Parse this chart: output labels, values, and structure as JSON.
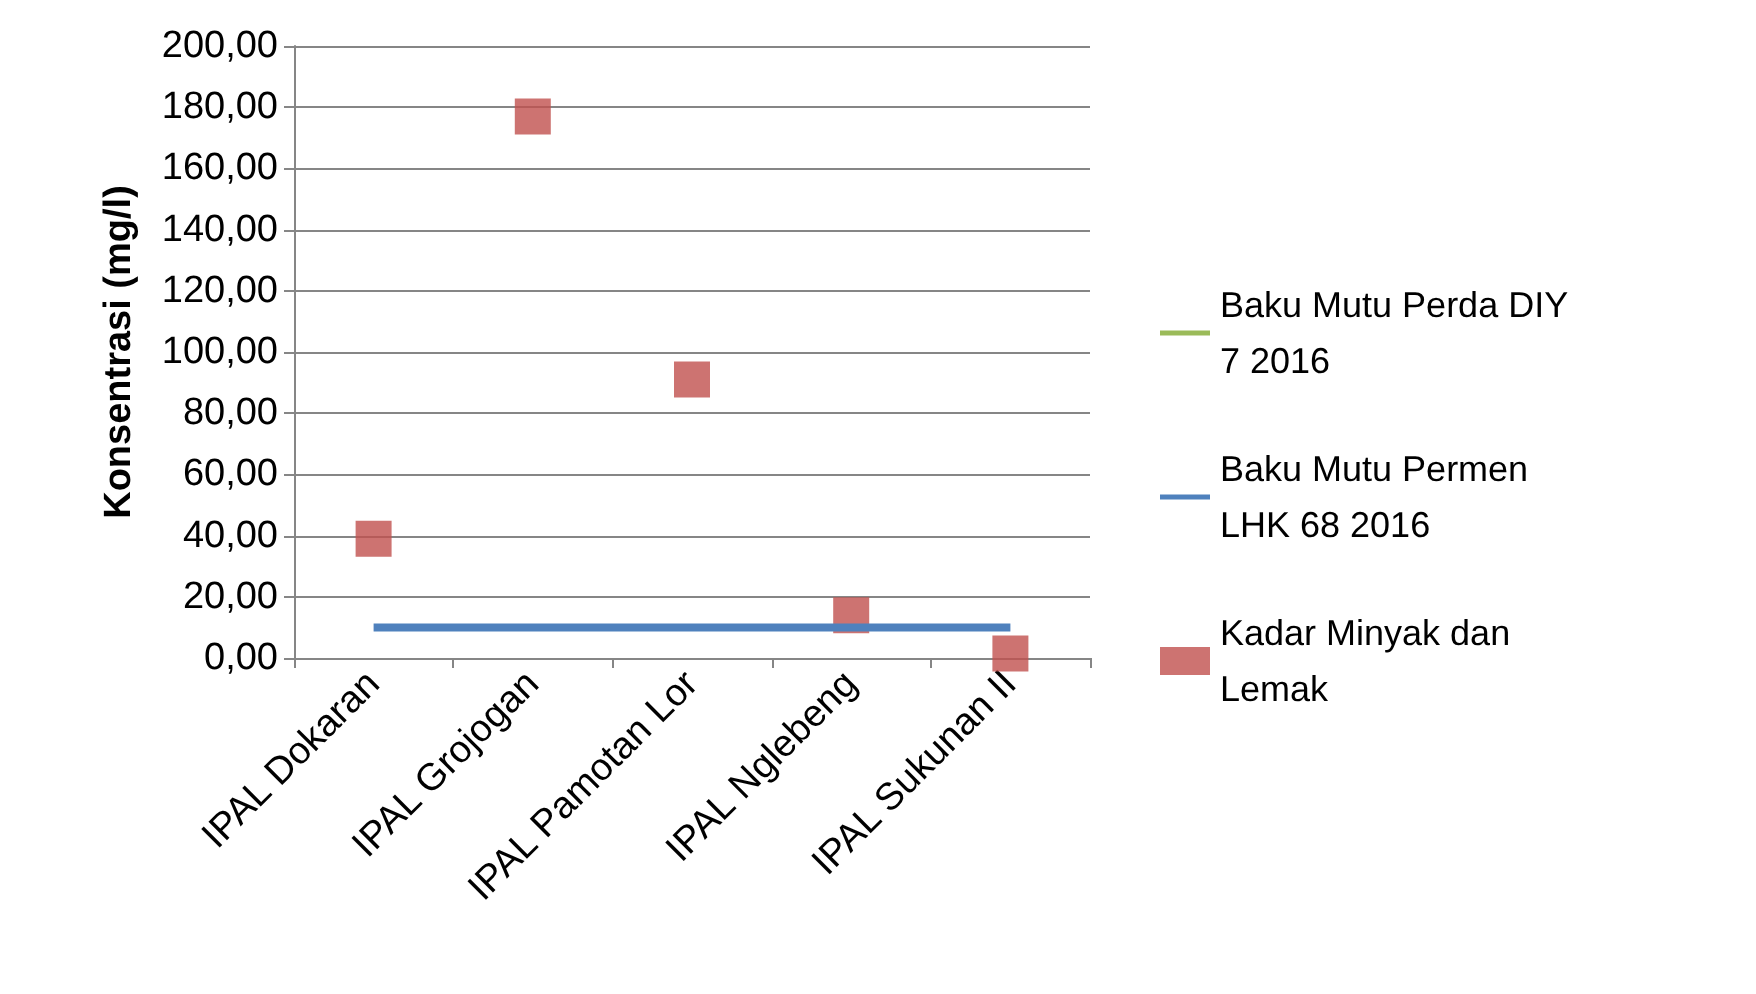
{
  "chart_data": {
    "type": "line",
    "ylabel": "Konsentrasi (mg/l)",
    "categories": [
      "IPAL Dokaran",
      "IPAL Grojogan",
      "IPAL Pamotan Lor",
      "IPAL Nglebeng",
      "IPAL Sukunan II"
    ],
    "series": [
      {
        "name": "Baku Mutu Perda DIY 7 2016",
        "color": "#9bbb59",
        "values": [
          null,
          null,
          null,
          null,
          null
        ]
      },
      {
        "name": "Baku Mutu Permen LHK 68 2016",
        "color": "#4f81bd",
        "values": [
          10,
          10,
          10,
          10,
          10
        ]
      },
      {
        "name": "Kadar Minyak dan Lemak",
        "color": "#c0504d",
        "type": "scatter",
        "marker": "square",
        "values": [
          39,
          177,
          91,
          14,
          1.5
        ]
      }
    ],
    "ylim": [
      0,
      200
    ],
    "yticks": [
      {
        "value": 0,
        "label": "0,00"
      },
      {
        "value": 20,
        "label": "20,00"
      },
      {
        "value": 40,
        "label": "40,00"
      },
      {
        "value": 60,
        "label": "60,00"
      },
      {
        "value": 80,
        "label": "80,00"
      },
      {
        "value": 100,
        "label": "100,00"
      },
      {
        "value": 120,
        "label": "120,00"
      },
      {
        "value": 140,
        "label": "140,00"
      },
      {
        "value": 160,
        "label": "160,00"
      },
      {
        "value": 180,
        "label": "180,00"
      },
      {
        "value": 200,
        "label": "200,00"
      }
    ],
    "grid": "y",
    "legend": "right",
    "marker": "none"
  }
}
